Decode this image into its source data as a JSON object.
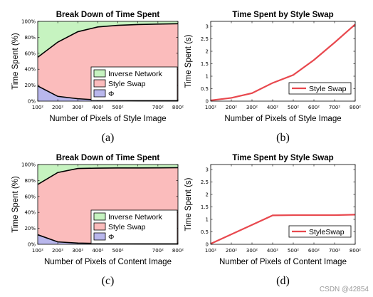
{
  "colors": {
    "network": "#c6f3c0",
    "swap": "#fbbcbc",
    "phi": "#b9b7ec",
    "line": "#e8484e",
    "frame": "#000000"
  },
  "watermark": "CSDN @42854",
  "chart_data": [
    {
      "panel": "a",
      "type": "area",
      "stacked": true,
      "title": "Break Down of Time Spent",
      "xlabel": "Number of Pixels of Style Image",
      "ylabel": "Time Spent (%)",
      "caption": "(a)",
      "x": [
        100,
        200,
        300,
        400,
        500,
        600,
        700,
        800
      ],
      "xtick_labels": [
        "100²",
        "200²",
        "300²",
        "400²",
        "500²",
        "",
        "700²",
        "800²"
      ],
      "ylim": [
        0,
        100
      ],
      "ytick_labels": [
        "0%",
        "20%",
        "40%",
        "60%",
        "80%",
        "100%"
      ],
      "legend_position": "lower-right",
      "series": [
        {
          "name": "Φ",
          "values": [
            19,
            6,
            3,
            1.5,
            1,
            0.5,
            0.4,
            0.3
          ],
          "color": "phi"
        },
        {
          "name": "Style Swap",
          "values": [
            36,
            68,
            84,
            91.5,
            94,
            95.5,
            96.2,
            96.7
          ],
          "color": "swap"
        },
        {
          "name": "Inverse Network",
          "values": [
            45,
            26,
            13,
            7,
            5,
            4,
            3.4,
            3
          ],
          "color": "network"
        }
      ],
      "legend_order": [
        "Inverse Network",
        "Style Swap",
        "Φ"
      ]
    },
    {
      "panel": "b",
      "type": "line",
      "title": "Time Spent by Style Swap",
      "xlabel": "Number of Pixels of Style Image",
      "ylabel": "Time Spent (s)",
      "caption": "(b)",
      "x": [
        100,
        200,
        300,
        400,
        500,
        600,
        700,
        800
      ],
      "xtick_labels": [
        "100²",
        "200²",
        "300²",
        "400²",
        "500²",
        "600²",
        "700²",
        "800²"
      ],
      "ylim": [
        0,
        3.2
      ],
      "ytick_labels": [
        "0",
        "0.5",
        "1",
        "1.5",
        "2",
        "2.5",
        "3"
      ],
      "legend_position": "lower-right",
      "series": [
        {
          "name": "Style Swap",
          "values": [
            0.03,
            0.13,
            0.32,
            0.73,
            1.05,
            1.65,
            2.35,
            3.08
          ],
          "color": "line"
        }
      ]
    },
    {
      "panel": "c",
      "type": "area",
      "stacked": true,
      "title": "Break Down of Time Spent",
      "xlabel": "Number of Pixels of Content Image",
      "ylabel": "Time Spent (%)",
      "caption": "(c)",
      "x": [
        100,
        200,
        300,
        400,
        500,
        600,
        700,
        800
      ],
      "xtick_labels": [
        "100²",
        "200²",
        "300²",
        "400²",
        "500²",
        "",
        "700²",
        "800²"
      ],
      "ylim": [
        0,
        100
      ],
      "ytick_labels": [
        "0%",
        "20%",
        "40%",
        "60%",
        "80%",
        "100%"
      ],
      "legend_position": "lower-right",
      "series": [
        {
          "name": "Φ",
          "values": [
            12,
            3,
            1.5,
            1,
            0.8,
            0.6,
            0.5,
            0.5
          ],
          "color": "phi"
        },
        {
          "name": "Style Swap",
          "values": [
            63,
            87,
            93.5,
            94.5,
            94.9,
            95.1,
            95.3,
            95.5
          ],
          "color": "swap"
        },
        {
          "name": "Inverse Network",
          "values": [
            25,
            10,
            5,
            4.5,
            4.3,
            4.3,
            4.2,
            4
          ],
          "color": "network"
        }
      ],
      "legend_order": [
        "Inverse Network",
        "Style Swap",
        "Φ"
      ]
    },
    {
      "panel": "d",
      "type": "line",
      "title": "Time Spent by Style Swap",
      "xlabel": "Number of Pixels of Content Image",
      "ylabel": "Time Spent (s)",
      "caption": "(d)",
      "x": [
        100,
        200,
        300,
        400,
        500,
        600,
        700,
        800
      ],
      "xtick_labels": [
        "100²",
        "200²",
        "300²",
        "400²",
        "500²",
        "600²",
        "700²",
        "800²"
      ],
      "ylim": [
        0,
        3.2
      ],
      "ytick_labels": [
        "0",
        "0.5",
        "1",
        "1.5",
        "2",
        "2.5",
        "3"
      ],
      "legend_position": "lower-right",
      "series": [
        {
          "name": "StyleSwap",
          "values": [
            0.02,
            0.4,
            0.78,
            1.16,
            1.17,
            1.17,
            1.17,
            1.19
          ],
          "color": "line"
        }
      ]
    }
  ]
}
